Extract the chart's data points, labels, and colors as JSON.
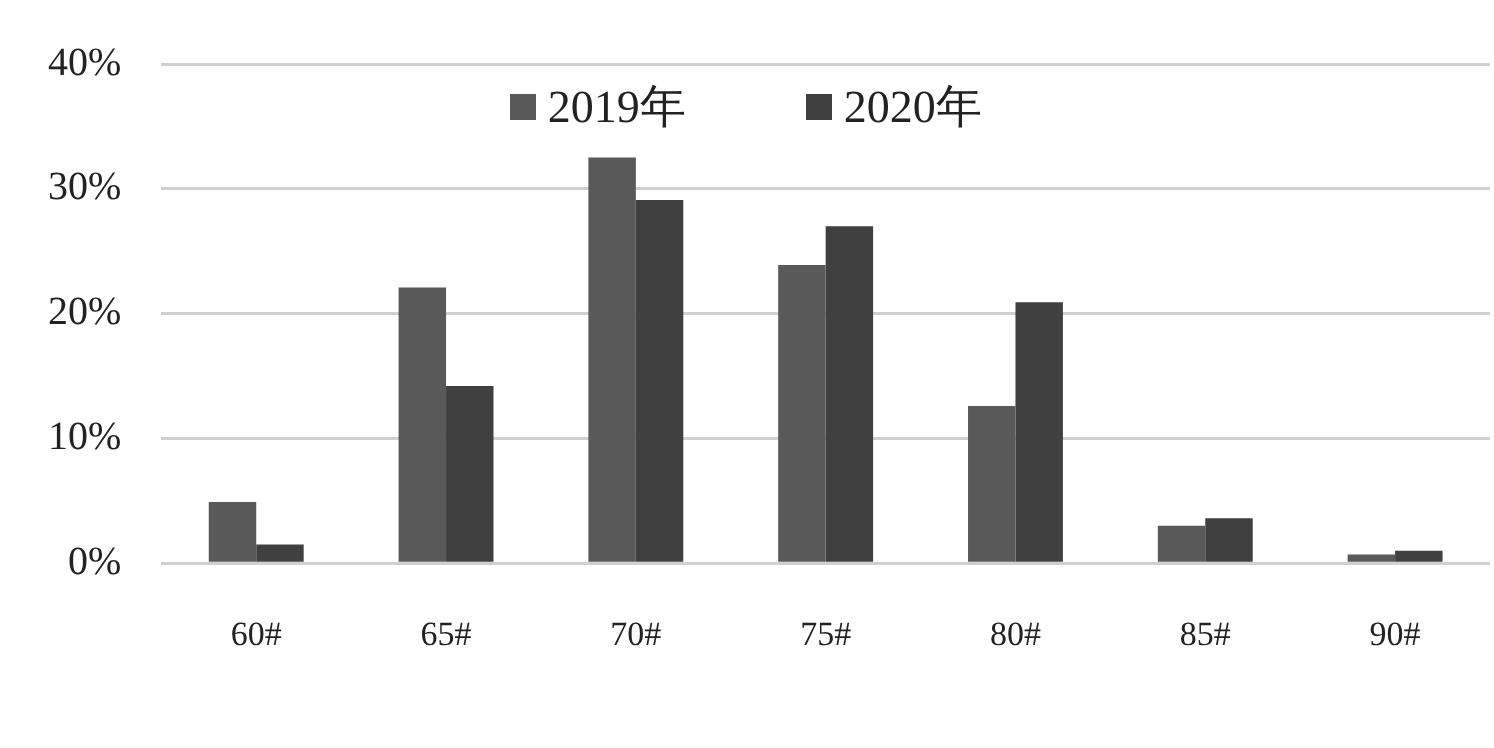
{
  "chart_data": {
    "type": "bar",
    "categories": [
      "60#",
      "65#",
      "70#",
      "75#",
      "80#",
      "85#",
      "90#"
    ],
    "series": [
      {
        "name": "2019年",
        "color": "#595959",
        "values": [
          4.9,
          22.1,
          32.5,
          23.9,
          12.6,
          3.0,
          0.7
        ]
      },
      {
        "name": "2020年",
        "color": "#404040",
        "values": [
          1.5,
          14.2,
          29.1,
          27.0,
          20.9,
          3.6,
          1.0
        ]
      }
    ],
    "ylim": [
      0,
      40
    ],
    "yticks": [
      {
        "value": 0,
        "label": "0%"
      },
      {
        "value": 10,
        "label": "10%"
      },
      {
        "value": 20,
        "label": "20%"
      },
      {
        "value": 30,
        "label": "30%"
      },
      {
        "value": 40,
        "label": "40%"
      }
    ],
    "grid": "y",
    "legend": "top"
  }
}
